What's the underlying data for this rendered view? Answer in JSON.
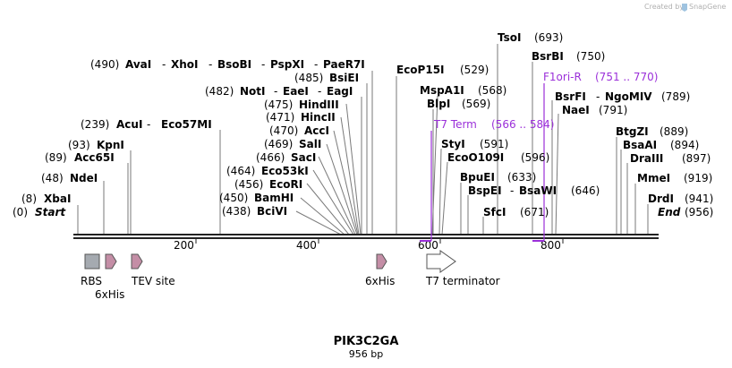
{
  "credit": {
    "text": "Created by",
    "brand": "SnapGene"
  },
  "title": "PIK3C2GA",
  "length": "956 bp",
  "ticks": [
    "200",
    "400",
    "600",
    "800"
  ],
  "ends": {
    "start": "Start",
    "start_pos": "(0)",
    "end": "End",
    "end_pos": "(956)"
  },
  "features": {
    "rbs": "RBS",
    "his1": "6xHis",
    "tev": "TEV site",
    "his2": "6xHis",
    "t7term": "T7 terminator"
  },
  "primers": {
    "t7": {
      "name": "T7 Term",
      "range": "(566 .. 584)"
    },
    "f1": {
      "name": "F1ori-R",
      "range": "(751 .. 770)"
    }
  },
  "sites": [
    {
      "id": "xbai",
      "pos": "(8)",
      "name": "XbaI"
    },
    {
      "id": "ndei",
      "pos": "(48)",
      "name": "NdeI"
    },
    {
      "id": "acc65i",
      "pos": "(89)",
      "name": "Acc65I"
    },
    {
      "id": "kpni",
      "pos": "(93)",
      "name": "KpnI"
    },
    {
      "id": "acui",
      "pos": "(239)",
      "name": "AcuI",
      "extra": "Eco57MI"
    },
    {
      "id": "aval",
      "pos": "(490)",
      "name": "AvaI",
      "extra": "XhoI",
      "extra2": "BsoBI",
      "extra3": "PspXI",
      "extra4": "PaeR7I"
    },
    {
      "id": "bsiei",
      "pos": "(485)",
      "name": "BsiEI"
    },
    {
      "id": "noti",
      "pos": "(482)",
      "name": "NotI",
      "extra": "EaeI",
      "extra2": "EagI"
    },
    {
      "id": "hindiii",
      "pos": "(475)",
      "name": "HindIII"
    },
    {
      "id": "hincii",
      "pos": "(471)",
      "name": "HincII"
    },
    {
      "id": "acci",
      "pos": "(470)",
      "name": "AccI"
    },
    {
      "id": "sali",
      "pos": "(469)",
      "name": "SalI"
    },
    {
      "id": "saci",
      "pos": "(466)",
      "name": "SacI"
    },
    {
      "id": "eco53ki",
      "pos": "(464)",
      "name": "Eco53kI"
    },
    {
      "id": "ecori",
      "pos": "(456)",
      "name": "EcoRI"
    },
    {
      "id": "bamhi",
      "pos": "(450)",
      "name": "BamHI"
    },
    {
      "id": "bcivi",
      "pos": "(438)",
      "name": "BciVI"
    },
    {
      "id": "ecop15i",
      "name": "EcoP15I",
      "pos": "(529)"
    },
    {
      "id": "mspa1i",
      "name": "MspA1I",
      "pos": "(568)"
    },
    {
      "id": "blpi",
      "name": "BlpI",
      "pos": "(569)"
    },
    {
      "id": "styi",
      "name": "StyI",
      "pos": "(591)"
    },
    {
      "id": "ecoo109i",
      "name": "EcoO109I",
      "pos": "(596)"
    },
    {
      "id": "bpuei",
      "name": "BpuEI",
      "pos": "(633)"
    },
    {
      "id": "bspei",
      "name": "BspEI",
      "extra": "BsaWI",
      "pos": "(646)"
    },
    {
      "id": "sfci",
      "name": "SfcI",
      "pos": "(671)"
    },
    {
      "id": "tsoi",
      "name": "TsoI",
      "pos": "(693)"
    },
    {
      "id": "bsrbi",
      "name": "BsrBI",
      "pos": "(750)"
    },
    {
      "id": "bsrfi",
      "name": "BsrFI",
      "extra": "NgoMIV",
      "pos": "(789)"
    },
    {
      "id": "naei",
      "name": "NaeI",
      "pos": "(791)"
    },
    {
      "id": "btgzi",
      "name": "BtgZI",
      "pos": "(889)"
    },
    {
      "id": "bsaai",
      "name": "BsaAI",
      "pos": "(894)"
    },
    {
      "id": "draiii",
      "name": "DraIII",
      "pos": "(897)"
    },
    {
      "id": "mmei",
      "name": "MmeI",
      "pos": "(919)"
    },
    {
      "id": "drdi",
      "name": "DrdI",
      "pos": "(941)"
    }
  ]
}
